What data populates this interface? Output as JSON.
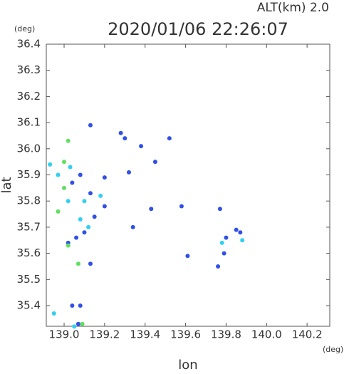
{
  "chart_data": {
    "type": "scatter",
    "altitude_label": "ALT(km)  2.0",
    "y_unit": "(deg)",
    "title": "2020/01/06 22:26:07",
    "y_label": "lat",
    "x_label": "lon",
    "x_unit": "(deg)",
    "xlim": [
      138.912,
      140.312
    ],
    "ylim": [
      35.321,
      36.4
    ],
    "xticks": [
      {
        "value": 139.0,
        "label": "139.0"
      },
      139.2,
      139.4,
      139.6,
      139.8,
      {
        "value": 140.0,
        "label": "140.0"
      },
      140.2
    ],
    "yticks": [
      35.4,
      35.5,
      35.6,
      35.7,
      35.8,
      35.9,
      {
        "value": 36.0,
        "label": "36.0"
      },
      36.1,
      36.2,
      36.3,
      36.4
    ],
    "series": [
      {
        "color": "#3050e8",
        "x": [
          139.13,
          139.28,
          139.3,
          139.32,
          139.38,
          139.45,
          139.52,
          139.43,
          139.34,
          139.08,
          139.13,
          139.06,
          139.1,
          139.13,
          139.15,
          139.2,
          139.58,
          139.61,
          139.77,
          139.8,
          139.85,
          139.87,
          139.79,
          139.76,
          139.04,
          139.08,
          139.07,
          139.2,
          139.04,
          139.02
        ],
        "values": [
          36.09,
          36.06,
          36.04,
          35.91,
          36.01,
          35.95,
          36.04,
          35.77,
          35.7,
          35.9,
          35.83,
          35.66,
          35.68,
          35.56,
          35.74,
          35.78,
          35.78,
          35.59,
          35.77,
          35.66,
          35.69,
          35.68,
          35.6,
          35.55,
          35.4,
          35.4,
          35.33,
          35.89,
          35.87,
          35.64
        ]
      },
      {
        "color": "#30d0f0",
        "x": [
          138.93,
          138.97,
          139.03,
          139.1,
          139.02,
          139.08,
          139.12,
          138.95,
          139.88,
          139.78,
          139.05,
          139.18
        ],
        "values": [
          35.94,
          35.9,
          35.93,
          35.8,
          35.8,
          35.73,
          35.7,
          35.37,
          35.65,
          35.64,
          35.32,
          35.82
        ]
      },
      {
        "color": "#60e060",
        "x": [
          139.02,
          139.0,
          139.07,
          138.97,
          139.0,
          139.02,
          139.09
        ],
        "values": [
          36.03,
          35.95,
          35.56,
          35.76,
          35.85,
          35.63,
          35.33
        ]
      }
    ]
  }
}
